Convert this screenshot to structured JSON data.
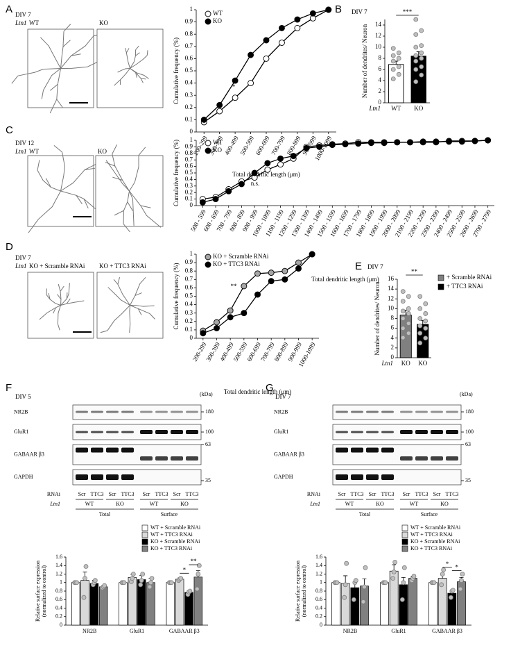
{
  "panels": {
    "letters": [
      "A",
      "B",
      "C",
      "D",
      "E",
      "F",
      "G"
    ],
    "A": {
      "div": "DIV 7",
      "gene": "Ltn1",
      "images": [
        "WT",
        "KO"
      ]
    },
    "C": {
      "div": "DIV 12",
      "gene": "Ltn1",
      "images": [
        "WT",
        "KO"
      ]
    },
    "D": {
      "div": "DIV 7",
      "gene": "Ltn1",
      "images": [
        "KO + Scramble RNAi",
        "KO + TTC3 RNAi"
      ]
    },
    "F": {
      "div": "DIV 5",
      "unit": "(kDa)",
      "bands": [
        "NR2B",
        "GluR1",
        "GABAAR β3",
        "GAPDH"
      ],
      "markers": [
        180,
        100,
        63,
        35
      ],
      "rnai_label": "RNAi",
      "rnai": [
        "Scr",
        "TTC3",
        "Scr",
        "TTC3",
        "Scr",
        "TTC3",
        "Scr",
        "TTC3"
      ],
      "gene": "Ltn1",
      "genotypes": [
        "WT",
        "KO",
        "WT",
        "KO"
      ],
      "fractions": [
        "Total",
        "Surface"
      ]
    },
    "G": {
      "div": "DIV 7",
      "unit": "(kDa)",
      "bands": [
        "NR2B",
        "GluR1",
        "GABAAR β3",
        "GAPDH"
      ],
      "markers": [
        180,
        100,
        63,
        35
      ],
      "rnai_label": "RNAi",
      "rnai": [
        "Scr",
        "TTC3",
        "Scr",
        "TTC3",
        "Scr",
        "TTC3",
        "Scr",
        "TTC3"
      ],
      "gene": "Ltn1",
      "genotypes": [
        "WT",
        "KO",
        "WT",
        "KO"
      ],
      "fractions": [
        "Total",
        "Surface"
      ]
    }
  },
  "chart_data": [
    {
      "type": "line",
      "categories": [
        "200-299",
        "300-399",
        "400-499",
        "500-599",
        "600-699",
        "700-799",
        "800-899",
        "900-999",
        "1000-1099"
      ],
      "series": [
        {
          "name": "WT",
          "color": "#ffffff",
          "values": [
            0.08,
            0.17,
            0.28,
            0.4,
            0.6,
            0.73,
            0.85,
            0.93,
            1
          ]
        },
        {
          "name": "KO",
          "color": "#000000",
          "values": [
            0.1,
            0.22,
            0.42,
            0.63,
            0.75,
            0.85,
            0.92,
            0.97,
            1
          ]
        }
      ],
      "ylim": [
        0,
        1
      ],
      "yticks": [
        0,
        0.1,
        0.2,
        0.3,
        0.4,
        0.5,
        0.6,
        0.7,
        0.8,
        0.9,
        1
      ],
      "ylabel": "Cumulative frequency (%)",
      "xlabel": "Total dendritic length (μm)",
      "legend": "upper left",
      "annotations": [
        "*"
      ]
    },
    {
      "type": "bar",
      "title": "DIV 7",
      "category_label": "Ltn1",
      "categories": [
        "WT",
        "KO"
      ],
      "values": [
        6.9,
        8.4
      ],
      "errors": [
        0.6,
        0.8
      ],
      "colors": [
        "#ffffff",
        "#000000"
      ],
      "points": [
        [
          4.3,
          5.1,
          6,
          6.5,
          7.5,
          8,
          8.5,
          9,
          9.8
        ],
        [
          3.8,
          5,
          6,
          6.5,
          7.5,
          8,
          8.5,
          9,
          10,
          10.3,
          12.3,
          13,
          15
        ]
      ],
      "ylim": [
        0,
        15
      ],
      "yticks": [
        0,
        2,
        4,
        6,
        8,
        10,
        12,
        14
      ],
      "ylabel": "Number of dendrites/ Neuron",
      "annotations": [
        "***"
      ]
    },
    {
      "type": "line",
      "categories": [
        "500 - 599",
        "600 - 699",
        "700 - 799",
        "800 - 899",
        "900 - 999",
        "1000 - 1099",
        "1100 - 1199",
        "1200 - 1299",
        "1300 - 1399",
        "1400 - 1499",
        "1500 - 1599",
        "1600 - 1699",
        "1700 - 1799",
        "1800 - 1899",
        "1900 - 1999",
        "2000 - 2099",
        "2100 - 2199",
        "2200 - 2299",
        "2300 - 2399",
        "2400 - 2499",
        "2500 - 2599",
        "2600 - 2699",
        "2700 - 2799"
      ],
      "series": [
        {
          "name": "WT",
          "color": "#ffffff",
          "values": [
            0.1,
            0.13,
            0.25,
            0.37,
            0.43,
            0.55,
            0.63,
            0.72,
            0.9,
            0.92,
            0.94,
            0.95,
            0.97,
            0.97,
            0.97,
            0.97,
            0.97,
            0.97,
            0.97,
            0.99,
            0.99,
            0.99,
            1
          ]
        },
        {
          "name": "KO",
          "color": "#000000",
          "values": [
            0.05,
            0.1,
            0.22,
            0.33,
            0.5,
            0.65,
            0.72,
            0.76,
            0.88,
            0.9,
            0.93,
            0.94,
            0.95,
            0.96,
            0.96,
            0.97,
            0.97,
            0.98,
            0.98,
            0.98,
            0.98,
            0.99,
            1
          ]
        }
      ],
      "ylim": [
        0,
        1
      ],
      "yticks": [
        0,
        0.1,
        0.2,
        0.3,
        0.4,
        0.5,
        0.6,
        0.7,
        0.8,
        0.9,
        1
      ],
      "ylabel": "Cumulative frequency (%)",
      "xlabel": "Total dendritic length (μm)",
      "legend": "upper left",
      "annotations": [
        "n.s."
      ]
    },
    {
      "type": "line",
      "categories": [
        "200-299",
        "300-399",
        "400-499",
        "500-599",
        "600-699",
        "700-799",
        "800-899",
        "900-999",
        "1000-1099"
      ],
      "series": [
        {
          "name": "KO + Scramble RNAi",
          "color": "#a6a6a6",
          "values": [
            0.09,
            0.19,
            0.33,
            0.62,
            0.77,
            0.78,
            0.8,
            0.9,
            1
          ]
        },
        {
          "name": "KO + TTC3 RNAi",
          "color": "#000000",
          "values": [
            0.06,
            0.12,
            0.25,
            0.3,
            0.52,
            0.68,
            0.7,
            0.83,
            1
          ]
        }
      ],
      "ylim": [
        0,
        1
      ],
      "yticks": [
        0,
        0.1,
        0.2,
        0.3,
        0.4,
        0.5,
        0.6,
        0.7,
        0.8,
        0.9,
        1
      ],
      "ylabel": "Cumulative frequency (%)",
      "xlabel": "Total dendritic length (μm)",
      "legend": "upper left",
      "annotations": [
        "**"
      ]
    },
    {
      "type": "bar",
      "title": "DIV 7",
      "category_label": "Ltn1",
      "categories": [
        "KO",
        "KO"
      ],
      "values": [
        8.7,
        6.8
      ],
      "errors": [
        1,
        0.8
      ],
      "colors": [
        "#808080",
        "#000000"
      ],
      "legend_labels": [
        "+ Scramble RNAi",
        "+ TTC3 RNAi"
      ],
      "points": [
        [
          4.1,
          5,
          6,
          7,
          8,
          9,
          9.5,
          10,
          11.5,
          12.5,
          13.5
        ],
        [
          3,
          4,
          5,
          6,
          6.5,
          7.5,
          8,
          9,
          10,
          11,
          12.5
        ]
      ],
      "ylim": [
        0,
        16
      ],
      "yticks": [
        0,
        2,
        4,
        6,
        8,
        10,
        12,
        14,
        16
      ],
      "ylabel": "Number of dendrites/ Neuron",
      "annotations": [
        "**"
      ]
    },
    {
      "type": "bar",
      "categories": [
        "NR2B",
        "GluR1",
        "GABAAR β3"
      ],
      "series": [
        {
          "name": "WT + Scramble RNAi",
          "color": "#ffffff",
          "values": [
            1,
            1,
            1
          ],
          "errors": [
            0,
            0,
            0
          ],
          "points": [
            [
              1,
              1,
              1
            ],
            [
              1,
              1,
              1
            ],
            [
              1,
              1,
              1
            ]
          ]
        },
        {
          "name": "WT + TTC3 RNAi",
          "color": "#d9d9d9",
          "values": [
            1.05,
            1.12,
            1.08
          ],
          "errors": [
            0.2,
            0.08,
            0.03
          ],
          "points": [
            [
              0.65,
              1.1,
              1.38
            ],
            [
              1.02,
              1.1,
              1.2
            ],
            [
              1.05,
              1.08,
              1.1
            ]
          ]
        },
        {
          "name": "KO + Scramble RNAi",
          "color": "#000000",
          "values": [
            0.98,
            1.07,
            0.77
          ],
          "errors": [
            0.07,
            0.1,
            0.04
          ],
          "points": [
            [
              0.95,
              1,
              1.05
            ],
            [
              0.95,
              1.05,
              1.2
            ],
            [
              0.72,
              0.78,
              0.8
            ]
          ]
        },
        {
          "name": "KO + TTC3 RNAi",
          "color": "#808080",
          "values": [
            0.9,
            1,
            1.13
          ],
          "errors": [
            0.03,
            0.1,
            0.15
          ],
          "points": [
            [
              0.88,
              0.9,
              0.93
            ],
            [
              0.9,
              1,
              1.1
            ],
            [
              0.85,
              1.2,
              1.4
            ]
          ]
        }
      ],
      "ylim": [
        0,
        1.6
      ],
      "yticks": [
        0,
        0.2,
        0.4,
        0.6,
        0.8,
        1,
        1.2,
        1.4,
        1.6
      ],
      "ylabel": [
        "Relative surface expression",
        "(normalized to control)"
      ],
      "annotations": [
        "*",
        "**"
      ]
    },
    {
      "type": "bar",
      "categories": [
        "NR2B",
        "GluR1",
        "GABAAR β3"
      ],
      "series": [
        {
          "name": "WT + Scramble RNAi",
          "color": "#ffffff",
          "values": [
            1,
            1,
            1
          ],
          "errors": [
            0,
            0,
            0
          ],
          "points": [
            [
              1,
              1,
              1
            ],
            [
              1,
              1,
              1
            ],
            [
              1,
              1,
              1
            ]
          ]
        },
        {
          "name": "WT + TTC3 RNAi",
          "color": "#d9d9d9",
          "values": [
            0.98,
            1.27,
            1.1
          ],
          "errors": [
            0.18,
            0.15,
            0.08
          ],
          "points": [
            [
              0.65,
              0.95,
              1.45
            ],
            [
              1.1,
              1.25,
              1.48
            ],
            [
              0.95,
              1.2,
              1.3
            ]
          ]
        },
        {
          "name": "KO + Scramble RNAi",
          "color": "#000000",
          "values": [
            0.88,
            0.95,
            0.75
          ],
          "errors": [
            0.12,
            0.17,
            0.07
          ],
          "points": [
            [
              0.6,
              1,
              1.05
            ],
            [
              0.6,
              1,
              1.35
            ],
            [
              0.65,
              0.8,
              0.82
            ]
          ]
        },
        {
          "name": "KO + TTC3 RNAi",
          "color": "#808080",
          "values": [
            0.92,
            1.1,
            1.02
          ],
          "errors": [
            0.17,
            0.05,
            0.1
          ],
          "points": [
            [
              0.55,
              0.9,
              1.35
            ],
            [
              1.05,
              1.1,
              1.15
            ],
            [
              0.85,
              1.05,
              1.2
            ]
          ]
        }
      ],
      "ylim": [
        0,
        1.6
      ],
      "yticks": [
        0,
        0.2,
        0.4,
        0.6,
        0.8,
        1,
        1.2,
        1.4,
        1.6
      ],
      "ylabel": [
        "Relative surface expression",
        "(normalized to control)"
      ],
      "annotations": [
        "*",
        "*"
      ]
    }
  ]
}
